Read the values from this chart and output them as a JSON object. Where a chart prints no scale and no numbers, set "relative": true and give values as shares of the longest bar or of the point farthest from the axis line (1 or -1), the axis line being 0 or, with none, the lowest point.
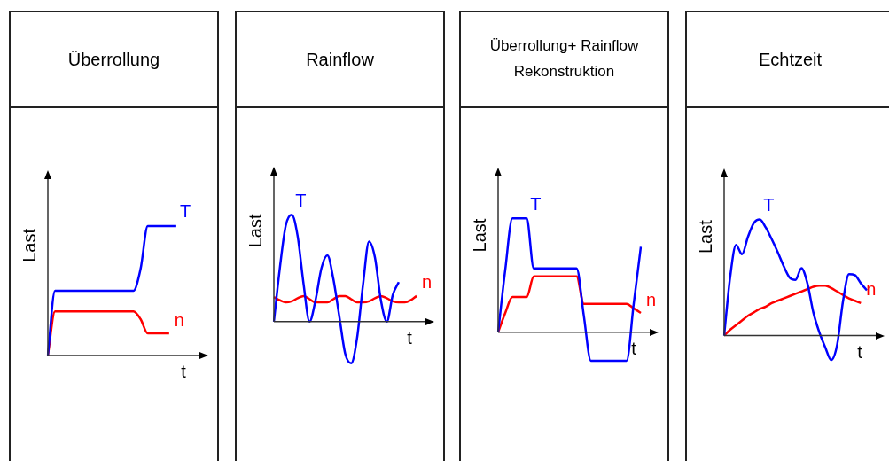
{
  "chart_data": [
    {
      "type": "line",
      "title": "Überrollung",
      "xlabel": "t",
      "ylabel": "Last",
      "relative": true,
      "categories": [
        null,
        null,
        null,
        null,
        null,
        null,
        null,
        null,
        null,
        null,
        null,
        null,
        null,
        null,
        null,
        null,
        null,
        null,
        null,
        null,
        null
      ],
      "series": [
        {
          "name": "T",
          "color": "#0000ff",
          "values": [
            0,
            0.5,
            0.5,
            0.5,
            0.5,
            0.5,
            0.5,
            0.5,
            0.5,
            0.5,
            0.5,
            0.5,
            0.5,
            0.67,
            1,
            1,
            1,
            1,
            1,
            null,
            null
          ]
        },
        {
          "name": "n",
          "color": "#ff0000",
          "values": [
            0,
            0.34,
            0.34,
            0.34,
            0.34,
            0.34,
            0.34,
            0.34,
            0.34,
            0.34,
            0.34,
            0.34,
            0.34,
            0.28,
            0.17,
            0.17,
            0.17,
            0.17,
            null,
            null,
            null
          ]
        }
      ]
    },
    {
      "type": "line",
      "title": "Rainflow",
      "xlabel": "t",
      "ylabel": "Last",
      "relative": true,
      "categories": [
        null,
        null,
        null,
        null,
        null,
        null,
        null,
        null,
        null,
        null,
        null,
        null,
        null,
        null,
        null,
        null,
        null,
        null,
        null,
        null,
        null,
        null,
        null,
        null,
        null
      ],
      "series": [
        {
          "name": "T",
          "color": "#0000ff",
          "values": [
            0,
            0.5,
            0.9,
            1,
            0.8,
            0.35,
            0,
            0.2,
            0.5,
            0.62,
            0.4,
            0.05,
            -0.3,
            -0.39,
            -0.15,
            0.35,
            0.75,
            0.6,
            0.2,
            0,
            0.25,
            0.37,
            null,
            null,
            null
          ]
        },
        {
          "name": "n",
          "color": "#ff0000",
          "values": [
            0.23,
            0.2,
            0.18,
            0.19,
            0.22,
            0.24,
            0.21,
            0.18,
            0.18,
            0.18,
            0.21,
            0.24,
            0.24,
            0.21,
            0.18,
            0.18,
            0.19,
            0.22,
            0.24,
            0.22,
            0.19,
            0.18,
            0.18,
            0.2,
            0.24
          ]
        }
      ]
    },
    {
      "type": "line",
      "title": "Überrollung+ Rainflow\nRekonstruktion",
      "xlabel": "t",
      "ylabel": "Last",
      "relative": true,
      "categories": [
        null,
        null,
        null,
        null,
        null,
        null,
        null,
        null,
        null,
        null,
        null,
        null,
        null,
        null,
        null,
        null,
        null,
        null,
        null,
        null,
        null
      ],
      "series": [
        {
          "name": "T",
          "color": "#0000ff",
          "values": [
            0,
            0.55,
            1,
            1,
            1,
            0.56,
            0.56,
            0.56,
            0.56,
            0.56,
            0.56,
            0.56,
            0.15,
            -0.25,
            -0.25,
            -0.25,
            -0.25,
            -0.25,
            -0.25,
            0.25,
            0.75
          ]
        },
        {
          "name": "n",
          "color": "#ff0000",
          "values": [
            0,
            0.17,
            0.31,
            0.31,
            0.31,
            0.49,
            0.49,
            0.49,
            0.49,
            0.49,
            0.49,
            0.49,
            0.25,
            0.25,
            0.25,
            0.25,
            0.25,
            0.25,
            0.25,
            0.21,
            0.17
          ]
        }
      ]
    },
    {
      "type": "line",
      "title": "Echtzeit",
      "xlabel": "t",
      "ylabel": "Last",
      "relative": true,
      "categories": [
        null,
        null,
        null,
        null,
        null,
        null,
        null,
        null,
        null,
        null,
        null,
        null,
        null,
        null,
        null,
        null,
        null,
        null,
        null,
        null,
        null,
        null,
        null,
        null,
        null
      ],
      "series": [
        {
          "name": "T",
          "color": "#0000ff",
          "values": [
            0,
            0.5,
            0.78,
            0.7,
            0.85,
            0.97,
            1,
            0.93,
            0.83,
            0.72,
            0.6,
            0.5,
            0.48,
            0.58,
            0.45,
            0.2,
            0.03,
            -0.1,
            -0.21,
            -0.08,
            0.3,
            0.53,
            0.52,
            0.45,
            0.39
          ]
        },
        {
          "name": "n",
          "color": "#ff0000",
          "values": [
            0,
            0.05,
            0.09,
            0.13,
            0.17,
            0.2,
            0.23,
            0.25,
            0.28,
            0.3,
            0.32,
            0.34,
            0.36,
            0.38,
            0.4,
            0.42,
            0.43,
            0.43,
            0.41,
            0.38,
            0.35,
            0.32,
            0.3,
            0.28,
            null
          ]
        }
      ]
    }
  ]
}
